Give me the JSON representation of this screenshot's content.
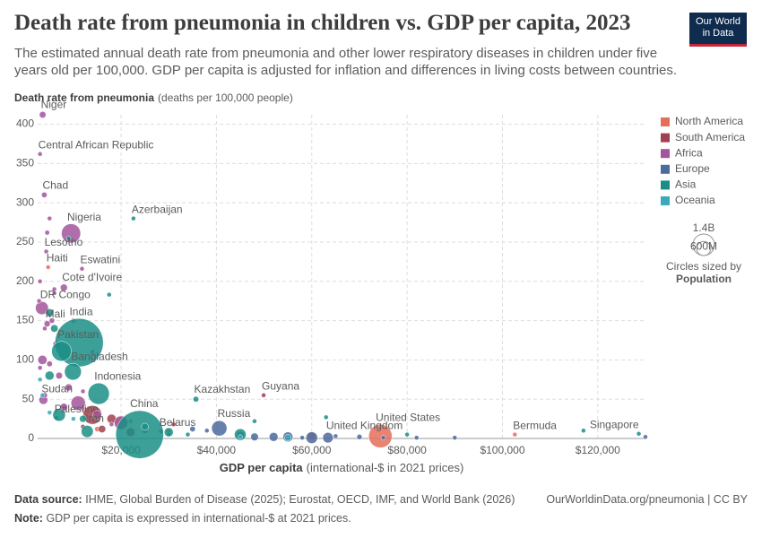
{
  "header": {
    "title": "Death rate from pneumonia in children vs. GDP per capita, 2023",
    "subtitle": "The estimated annual death rate from pneumonia and other lower respiratory diseases in children under five years old per 100,000. GDP per capita is adjusted for inflation and differences in living costs between countries.",
    "logo": [
      "Our World",
      "in Data"
    ]
  },
  "chart_data": {
    "type": "scatter",
    "y_label": "Death rate from pneumonia",
    "y_label_unit": "(deaths per 100,000 people)",
    "x_label": "GDP per capita",
    "x_label_unit": "(international-$ in 2021 prices)",
    "xlim": [
      2500,
      130000
    ],
    "ylim": [
      0,
      412
    ],
    "xticks": [
      {
        "value": 20000,
        "label": "$20,000"
      },
      {
        "value": 40000,
        "label": "$40,000"
      },
      {
        "value": 60000,
        "label": "$60,000"
      },
      {
        "value": 80000,
        "label": "$80,000"
      },
      {
        "value": 100000,
        "label": "$100,000"
      },
      {
        "value": 120000,
        "label": "$120,000"
      }
    ],
    "yticks": [
      0,
      50,
      100,
      150,
      200,
      250,
      300,
      350,
      400
    ],
    "grid": true,
    "legend": "right",
    "size_legend": {
      "title": "Circles sized by",
      "variable": "Population",
      "values": [
        {
          "value": 1400000000,
          "label": "1.4B"
        },
        {
          "value": 600000000,
          "label": "600M"
        }
      ]
    },
    "series": [
      {
        "name": "North America",
        "color": "#e56e5a",
        "x": [
          4700,
          74400,
          102600,
          20000,
          15000,
          22000,
          30000,
          12000,
          8000,
          60000
        ],
        "values": [
          218,
          3,
          5,
          20,
          12,
          22,
          10,
          38,
          40,
          3
        ],
        "sizes": [
          11700000,
          335000000,
          64000,
          128000000,
          17000000,
          5000000,
          3000000,
          10000000,
          6000000,
          39000000
        ],
        "labels": [
          "Haiti",
          "United States",
          "Bermuda",
          null,
          null,
          null,
          null,
          null,
          null,
          null
        ]
      },
      {
        "name": "South America",
        "color": "#a2404f",
        "x": [
          49900,
          14000,
          18000,
          16000,
          22000,
          25000,
          12000,
          31000
        ],
        "values": [
          55,
          30,
          25,
          12,
          8,
          10,
          15,
          18
        ],
        "sizes": [
          800000,
          216000000,
          52000000,
          34000000,
          46000000,
          20000000,
          12000000,
          3500000
        ],
        "labels": [
          "Guyana",
          null,
          null,
          null,
          null,
          null,
          null,
          null
        ]
      },
      {
        "name": "Africa",
        "color": "#a2559c",
        "x": [
          3550,
          3000,
          3900,
          9500,
          4300,
          11800,
          8000,
          3400,
          4500,
          3700,
          5000,
          4500,
          3000,
          6000,
          2800,
          5500,
          4000,
          6500,
          3500,
          5000,
          7000,
          9000,
          4000,
          12000,
          8000,
          15000,
          20000,
          14000,
          3000,
          10000,
          6000,
          18000,
          25000,
          11000
        ],
        "values": [
          412,
          362,
          310,
          261,
          238,
          216,
          192,
          166,
          146,
          49,
          280,
          262,
          200,
          190,
          175,
          150,
          140,
          120,
          100,
          95,
          80,
          65,
          55,
          60,
          40,
          30,
          20,
          110,
          90,
          150,
          185,
          18,
          12,
          45
        ],
        "sizes": [
          27000000,
          5700000,
          19000000,
          227000000,
          2300000,
          1200000,
          31000000,
          105000000,
          23000000,
          48000000,
          8000000,
          14000000,
          12000000,
          3000000,
          6000000,
          18000000,
          10000000,
          33000000,
          52000000,
          20000000,
          28000000,
          30000000,
          17000000,
          6000000,
          35000000,
          47000000,
          112000000,
          2600000,
          13000000,
          15000000,
          8500000,
          4000000,
          2000000,
          128000000
        ],
        "labels": [
          "Niger",
          "Central African Republic",
          "Chad",
          "Nigeria",
          "Lesotho",
          "Eswatini",
          "Cote d'Ivoire",
          "DR Congo",
          "Mali",
          "Sudan",
          null,
          null,
          null,
          null,
          null,
          null,
          null,
          null,
          null,
          null,
          null,
          null,
          null,
          null,
          null,
          null,
          null,
          null,
          null,
          null,
          null,
          null,
          null,
          null
        ]
      },
      {
        "name": "Europe",
        "color": "#4c6a9c",
        "x": [
          28400,
          40600,
          63400,
          38000,
          30000,
          48000,
          55000,
          60000,
          52000,
          65000,
          70000,
          82000,
          90000,
          35000,
          45000,
          58000,
          75000,
          130000
        ],
        "values": [
          9,
          13,
          1,
          10,
          5,
          2,
          2,
          1,
          2,
          3,
          2,
          1,
          1,
          12,
          4,
          1,
          1,
          2
        ],
        "sizes": [
          9000000,
          144000000,
          68000000,
          10000000,
          4000000,
          37000000,
          60000000,
          84000000,
          48000000,
          10000000,
          17000000,
          5000000,
          9000000,
          19000000,
          39000000,
          11000000,
          5500000,
          660000
        ],
        "labels": [
          "Belarus",
          "Russia",
          "United Kingdom",
          null,
          null,
          null,
          null,
          null,
          null,
          null,
          null,
          null,
          null,
          null,
          null,
          null,
          null,
          null
        ]
      },
      {
        "name": "Asia",
        "color": "#1a8e86",
        "x": [
          22600,
          35700,
          11200,
          7500,
          9900,
          15300,
          6400,
          12900,
          23900,
          128600,
          5000,
          6000,
          17500,
          9000,
          7000,
          25000,
          48000,
          63000,
          30000,
          45000,
          80000,
          117000,
          34000,
          12000,
          5000
        ],
        "values": [
          280,
          50,
          122,
          111,
          85,
          57,
          26,
          9,
          5,
          6,
          160,
          140,
          183,
          255,
          30,
          15,
          22,
          27,
          8,
          5,
          5,
          10,
          5,
          25,
          80
        ],
        "sizes": [
          10000000,
          20000000,
          1440000000,
          240000000,
          173000000,
          280000000,
          5000000,
          90000000,
          1410000000,
          6000000,
          40000000,
          35000000,
          7000000,
          6000000,
          100000000,
          30000000,
          4000000,
          3000000,
          50000000,
          85000000,
          10000000,
          3000000,
          10000000,
          30000000,
          50000000
        ],
        "labels": [
          "Azerbaijan",
          "Kazakhstan",
          "India",
          "Pakistan",
          "Bangladesh",
          "Indonesia",
          "Palestine",
          "Iran",
          "China",
          "Singapore",
          null,
          null,
          null,
          null,
          null,
          null,
          null,
          null,
          null,
          null,
          null,
          null,
          null,
          null,
          null
        ]
      },
      {
        "name": "Oceania",
        "color": "#38aaba",
        "x": [
          3500,
          5000,
          45000,
          55000,
          10000,
          3000
        ],
        "values": [
          55,
          33,
          2,
          1,
          25,
          75
        ],
        "sizes": [
          10000000,
          700000,
          5000000,
          27000000,
          900000,
          300000
        ],
        "labels": [
          null,
          null,
          null,
          null,
          null,
          null
        ]
      }
    ]
  },
  "footer": {
    "source_label": "Data source:",
    "source": "IHME, Global Burden of Disease (2025); Eurostat, OECD, IMF, and World Bank (2026)",
    "url": "OurWorldinData.org/pneumonia | CC BY",
    "note_label": "Note:",
    "note": "GDP per capita is expressed in international-$ at 2021 prices."
  }
}
